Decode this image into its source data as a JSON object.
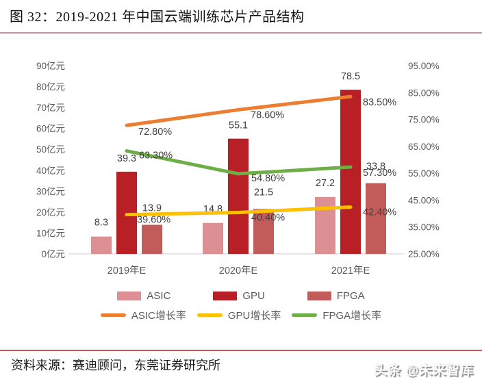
{
  "figure": {
    "title": "图 32：2019-2021 年中国云端训练芯片产品结构",
    "source_note": "资料来源：赛迪顾问，东莞证券研究所",
    "watermark": "头条 @未来智库"
  },
  "colors": {
    "asic_bar": "#DC9093",
    "gpu_bar": "#B92025",
    "fpga_bar": "#C15C5B",
    "asic_line": "#EC7D31",
    "gpu_line": "#FFC000",
    "fpga_line": "#6FAD47",
    "axis_text": "#595959",
    "data_label": "#404040",
    "baseline": "#D6D6D6",
    "title_rule": "#D29098",
    "footer_rule": "#C4555A"
  },
  "chart_data": {
    "type": "bar",
    "subtype": "bar-line-combo",
    "title": "2019-2021 年中国云端训练芯片产品结构",
    "categories": [
      "2019年E",
      "2020年E",
      "2021年E"
    ],
    "left_axis": {
      "unit": "亿元",
      "min": 0,
      "max": 90,
      "step": 10,
      "tick_values": [
        0,
        10,
        20,
        30,
        40,
        50,
        60,
        70,
        80,
        90
      ],
      "tick_labels": [
        "0亿元",
        "10亿元",
        "20亿元",
        "30亿元",
        "40亿元",
        "50亿元",
        "60亿元",
        "70亿元",
        "80亿元",
        "90亿元"
      ]
    },
    "right_axis": {
      "unit": "%",
      "min": 25,
      "max": 95,
      "step": 10,
      "tick_values": [
        25,
        35,
        45,
        55,
        65,
        75,
        85,
        95
      ],
      "tick_labels": [
        "25.00%",
        "35.00%",
        "45.00%",
        "55.00%",
        "65.00%",
        "75.00%",
        "85.00%",
        "95.00%"
      ]
    },
    "bar_series": [
      {
        "name": "ASIC",
        "color": "#DC9093",
        "values": [
          8.3,
          14.8,
          27.2
        ],
        "labels": [
          "8.3",
          "14.8",
          "27.2"
        ]
      },
      {
        "name": "GPU",
        "color": "#B92025",
        "values": [
          39.3,
          55.1,
          78.5
        ],
        "labels": [
          "39.3",
          "55.1",
          "78.5"
        ]
      },
      {
        "name": "FPGA",
        "color": "#C15C5B",
        "values": [
          13.9,
          21.5,
          33.8
        ],
        "labels": [
          "13.9",
          "21.5",
          "33.8"
        ]
      }
    ],
    "line_series": [
      {
        "name": "ASIC增长率",
        "color": "#EC7D31",
        "values": [
          72.8,
          78.6,
          83.5
        ],
        "labels": [
          "72.80%",
          "78.60%",
          "83.50%"
        ]
      },
      {
        "name": "GPU增长率",
        "color": "#FFC000",
        "values": [
          39.6,
          40.4,
          42.4
        ],
        "labels": [
          "39.60%",
          "40.40%",
          "42.40%"
        ]
      },
      {
        "name": "FPGA增长率",
        "color": "#6FAD47",
        "values": [
          63.3,
          54.8,
          57.3
        ],
        "labels": [
          "63.30%",
          "54.80%",
          "57.30%"
        ]
      }
    ],
    "legend_position": "bottom",
    "grid": false
  }
}
